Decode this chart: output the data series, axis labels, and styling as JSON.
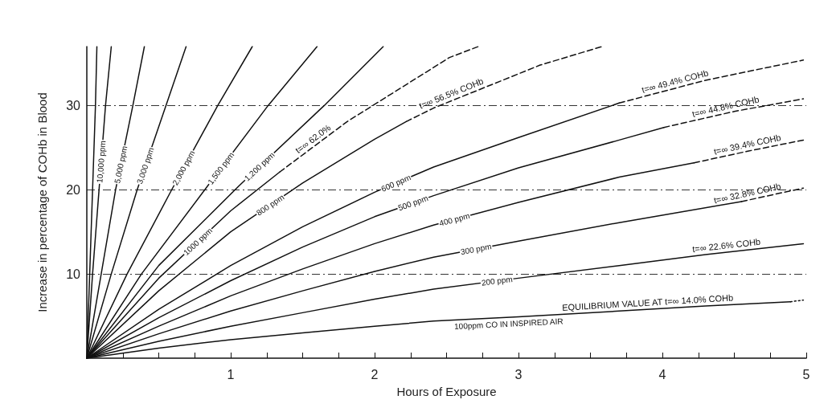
{
  "chart_data": {
    "type": "line",
    "xlabel": "Hours of Exposure",
    "ylabel": "Increase in percentage of COHb in Blood",
    "xlim": [
      0,
      5
    ],
    "ylim": [
      0,
      37
    ],
    "xticks": [
      {
        "value": 0,
        "label": null
      },
      {
        "value": 0.25,
        "label": null
      },
      {
        "value": 0.5,
        "label": null
      },
      {
        "value": 0.75,
        "label": null
      },
      1,
      {
        "value": 1.25,
        "label": null
      },
      {
        "value": 1.5,
        "label": null
      },
      {
        "value": 1.75,
        "label": null
      },
      2,
      {
        "value": 2.25,
        "label": null
      },
      {
        "value": 2.5,
        "label": null
      },
      {
        "value": 2.75,
        "label": null
      },
      3,
      {
        "value": 3.25,
        "label": null
      },
      {
        "value": 3.5,
        "label": null
      },
      {
        "value": 3.75,
        "label": null
      },
      4,
      {
        "value": 4.25,
        "label": null
      },
      {
        "value": 4.5,
        "label": null
      },
      {
        "value": 4.75,
        "label": null
      },
      5
    ],
    "yticks": [
      10,
      20,
      30
    ],
    "grid": "y",
    "legend": false,
    "marker": "none",
    "series": [
      {
        "color": "#111111",
        "x": [
          0,
          0.02,
          0.04,
          0.06,
          0.07
        ],
        "values": [
          0,
          10,
          20,
          30,
          37
        ]
      },
      {
        "name": "10,000 ppm",
        "color": "#111111",
        "x": [
          0,
          0.04,
          0.085,
          0.13,
          0.17
        ],
        "values": [
          0,
          10,
          20,
          30,
          37
        ]
      },
      {
        "name": "5,000 ppm",
        "color": "#111111",
        "x": [
          0,
          0.1,
          0.2,
          0.32,
          0.4
        ],
        "values": [
          0,
          10,
          20,
          30,
          37
        ]
      },
      {
        "name": "3,000 ppm",
        "color": "#111111",
        "x": [
          0,
          0.17,
          0.35,
          0.55,
          0.69
        ],
        "values": [
          0,
          10,
          20,
          30,
          37
        ]
      },
      {
        "name": "2,000 ppm",
        "color": "#111111",
        "x": [
          0,
          0.28,
          0.59,
          0.91,
          1.15
        ],
        "values": [
          0,
          10,
          20,
          30,
          37
        ]
      },
      {
        "name": "1,500 ppm",
        "color": "#111111",
        "x": [
          0,
          0.38,
          0.82,
          1.26,
          1.6
        ],
        "values": [
          0,
          10,
          20,
          30,
          37
        ]
      },
      {
        "name": "1,200 ppm",
        "color": "#111111",
        "x": [
          0,
          0.5,
          1.06,
          1.65,
          2.06
        ],
        "values": [
          0,
          11,
          20.5,
          30,
          37
        ]
      },
      {
        "name": "1000 ppm",
        "color": "#111111",
        "x": [
          0,
          0.5,
          1,
          1.34
        ],
        "values": [
          0,
          9.5,
          17.5,
          22.1
        ]
      },
      {
        "color": "#111111",
        "line_style": "dashed",
        "x": [
          1.34,
          1.81,
          2.52,
          2.72
        ],
        "values": [
          22.1,
          28.1,
          35.7,
          37
        ]
      },
      {
        "name": "800 ppm",
        "color": "#111111",
        "x": [
          0,
          0.5,
          1,
          1.5,
          2,
          2.22
        ],
        "values": [
          0,
          8,
          15,
          20.8,
          26,
          28.1
        ]
      },
      {
        "color": "#111111",
        "line_style": "dashed",
        "x": [
          2.22,
          2.41,
          3.15,
          3.58
        ],
        "values": [
          28.1,
          29.7,
          34.8,
          37
        ]
      },
      {
        "name": "600 ppm",
        "color": "#111111",
        "x": [
          0,
          0.5,
          1,
          1.5,
          2,
          2.41,
          3,
          3.7
        ],
        "values": [
          0,
          5.8,
          11,
          15.6,
          19.7,
          22.7,
          26.2,
          30.3
        ]
      },
      {
        "color": "#111111",
        "line_style": "dashed",
        "x": [
          3.7,
          4.3,
          4.98
        ],
        "values": [
          30.3,
          33,
          35.4
        ]
      },
      {
        "name": "500 ppm",
        "color": "#111111",
        "x": [
          0,
          0.5,
          1,
          1.5,
          2,
          2.41,
          3,
          3.7,
          4.01
        ],
        "values": [
          0,
          4.8,
          9.2,
          13.2,
          16.8,
          19.3,
          22.6,
          25.9,
          27.4
        ]
      },
      {
        "color": "#111111",
        "line_style": "dashed",
        "x": [
          4.01,
          4.5,
          4.98
        ],
        "values": [
          27.4,
          29.3,
          30.8
        ]
      },
      {
        "name": "400 ppm",
        "color": "#111111",
        "x": [
          0,
          0.5,
          1,
          1.5,
          2,
          2.41,
          3,
          3.7,
          4.22
        ],
        "values": [
          0,
          3.8,
          7.4,
          10.6,
          13.6,
          15.8,
          18.5,
          21.5,
          23.2
        ]
      },
      {
        "color": "#111111",
        "line_style": "dashed",
        "x": [
          4.22,
          4.6,
          4.98
        ],
        "values": [
          23.2,
          24.6,
          25.9
        ]
      },
      {
        "name": "300 ppm",
        "color": "#111111",
        "x": [
          0,
          0.5,
          1,
          1.5,
          2,
          2.41,
          3,
          3.7,
          4.55
        ],
        "values": [
          0,
          2.9,
          5.6,
          8,
          10.3,
          12,
          13.9,
          16.1,
          18.6
        ]
      },
      {
        "color": "#111111",
        "line_style": "dashed",
        "x": [
          4.55,
          4.98
        ],
        "values": [
          18.6,
          20.2
        ]
      },
      {
        "name": "200 ppm",
        "color": "#111111",
        "x": [
          0,
          0.5,
          1,
          1.5,
          2,
          2.41,
          3,
          3.7,
          4.3,
          4.98
        ],
        "values": [
          0,
          2,
          3.8,
          5.4,
          7,
          8.2,
          9.5,
          11,
          12.3,
          13.6
        ]
      },
      {
        "name": "100ppm CO IN INSPIRED AIR",
        "color": "#111111",
        "x": [
          0,
          0.5,
          1,
          1.5,
          2,
          2.41,
          3,
          3.7,
          4.3,
          4.89
        ],
        "values": [
          0,
          1.2,
          2.2,
          3,
          3.8,
          4.4,
          4.9,
          5.6,
          6.2,
          6.7
        ]
      },
      {
        "color": "#111111",
        "line_style": "dotted",
        "x": [
          4.89,
          4.98
        ],
        "values": [
          6.7,
          6.9
        ]
      }
    ],
    "annotations": [
      {
        "text": "t=∞ 62.0%",
        "x": 1.6,
        "y": 25.4
      },
      {
        "text": "t=∞ 56.5% COHb",
        "x": 2.55,
        "y": 30.7
      },
      {
        "text": "t=∞ 49.4% COHb",
        "x": 4.1,
        "y": 32.1
      },
      {
        "text": "t=∞ 44.8% COHb",
        "x": 4.45,
        "y": 29.1
      },
      {
        "text": "t=∞ 39.4% COHb",
        "x": 4.6,
        "y": 24.6
      },
      {
        "text": "t=∞ 32.8% COHb",
        "x": 4.6,
        "y": 18.8
      },
      {
        "text": "t=∞ 22.6% COHb",
        "x": 4.45,
        "y": 12.6
      },
      {
        "text": "EQUILIBRIUM VALUE AT t=∞ 14.0% COHb",
        "x": 3.9,
        "y": 5.8
      }
    ]
  }
}
